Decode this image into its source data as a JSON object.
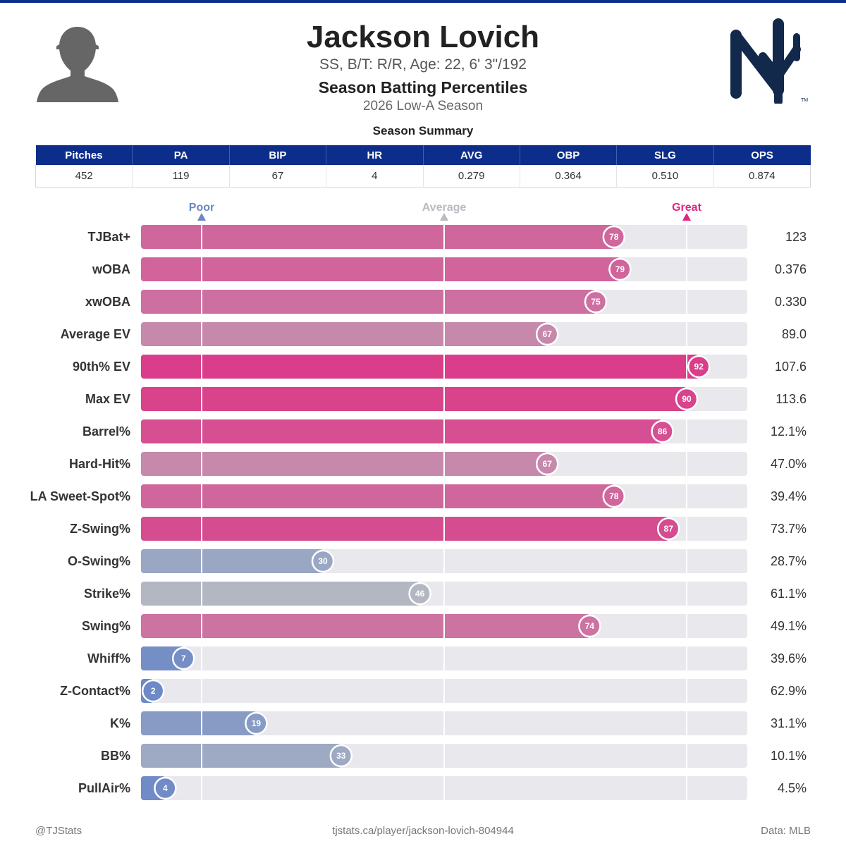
{
  "header": {
    "title": "Jackson Lovich",
    "subtitle": "SS, B/T: R/R, Age: 22, 6' 3\"/192",
    "heading": "Season Batting Percentiles",
    "season": "2026 Low-A Season",
    "summary_title": "Season Summary"
  },
  "summary": {
    "columns": [
      "Pitches",
      "PA",
      "BIP",
      "HR",
      "AVG",
      "OBP",
      "SLG",
      "OPS"
    ],
    "values": [
      "452",
      "119",
      "67",
      "4",
      "0.279",
      "0.364",
      "0.510",
      "0.874"
    ]
  },
  "scale_labels": {
    "poor": "Poor",
    "average": "Average",
    "great": "Great"
  },
  "colors": {
    "header_blue": "#0c2d8a",
    "poor": "#6a87c6",
    "average": "#b9bbc2",
    "great": "#e0257f",
    "track": "#e8e8ed",
    "logo_navy": "#13294b"
  },
  "chart_data": {
    "type": "bar",
    "orientation": "horizontal",
    "xlim": [
      0,
      100
    ],
    "reference_lines": [
      10,
      50,
      90
    ],
    "categories": [
      "TJBat+",
      "wOBA",
      "xwOBA",
      "Average EV",
      "90th% EV",
      "Max EV",
      "Barrel%",
      "Hard-Hit%",
      "LA Sweet-Spot%",
      "Z-Swing%",
      "O-Swing%",
      "Strike%",
      "Swing%",
      "Whiff%",
      "Z-Contact%",
      "K%",
      "BB%",
      "PullAir%"
    ],
    "percentiles": [
      78,
      79,
      75,
      67,
      92,
      90,
      86,
      67,
      78,
      87,
      30,
      46,
      74,
      7,
      2,
      19,
      33,
      4
    ],
    "values": [
      "123",
      "0.376",
      "0.330",
      "89.0",
      "107.6",
      "113.6",
      "12.1%",
      "47.0%",
      "39.4%",
      "73.7%",
      "28.7%",
      "61.1%",
      "49.1%",
      "39.6%",
      "62.9%",
      "31.1%",
      "10.1%",
      "4.5%"
    ]
  },
  "footer": {
    "left": "@TJStats",
    "center": "tjstats.ca/player/jackson-lovich-804944",
    "right": "Data: MLB"
  },
  "icons": {
    "avatar": "player-silhouette-icon",
    "logo": "yankees-logo-icon"
  }
}
